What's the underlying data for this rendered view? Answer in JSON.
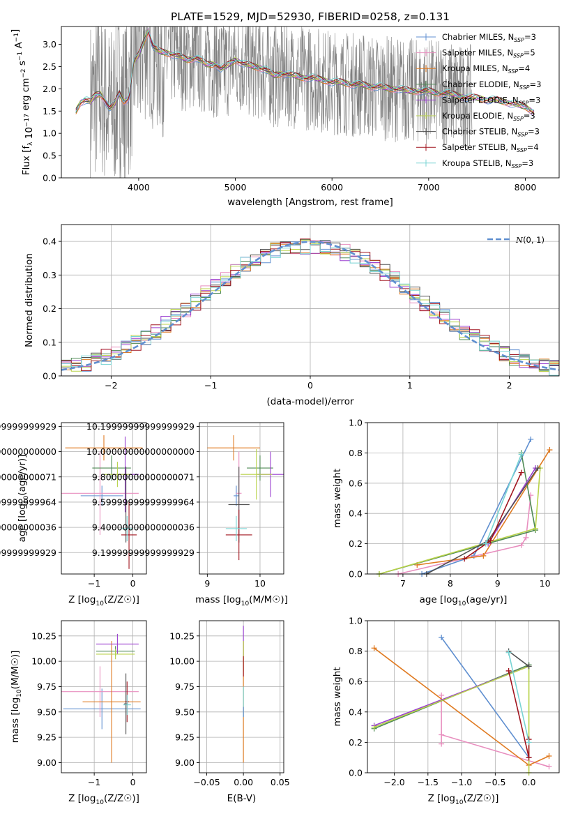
{
  "figure_title": "PLATE=1529, MJD=52930, FIBERID=0258, z=0.131",
  "colors": {
    "Chabrier MILES": "#5f8fd0",
    "Salpeter MILES": "#e88fbf",
    "Kroupa MILES": "#e07b22",
    "Chabrier ELODIE": "#4f8a55",
    "Salpeter ELODIE": "#9a3fd0",
    "Kroupa ELODIE": "#b8d24a",
    "Chabrier STELIB": "#505050",
    "Salpeter STELIB": "#a0141e",
    "Kroupa STELIB": "#78d4d4",
    "data": "#808080",
    "normal": "#5f8fd0"
  },
  "chart_data": [
    {
      "id": "spectrum",
      "type": "line",
      "xlabel": "wavelength [Angstrom, rest frame]",
      "ylabel": "Flux [f_λ 10^-17 erg cm^-2 s^-1 A^-1]",
      "xlim": [
        3200,
        8350
      ],
      "ylim": [
        0,
        3.4
      ],
      "xticks": [
        4000,
        5000,
        6000,
        7000,
        8000
      ],
      "yticks": [
        0.0,
        0.5,
        1.0,
        1.5,
        2.0,
        2.5,
        3.0
      ],
      "grid": false,
      "legend_position": "right",
      "legend": [
        {
          "model": "Chabrier MILES",
          "label": "Chabrier MILES, N",
          "n": "=3"
        },
        {
          "model": "Salpeter MILES",
          "label": "Salpeter MILES, N",
          "n": "=5"
        },
        {
          "model": "Kroupa MILES",
          "label": "Kroupa MILES, N",
          "n": "=4"
        },
        {
          "model": "Chabrier ELODIE",
          "label": "Chabrier ELODIE, N",
          "n": "=3"
        },
        {
          "model": "Salpeter ELODIE",
          "label": "Salpeter ELODIE, N",
          "n": "=3"
        },
        {
          "model": "Kroupa ELODIE",
          "label": "Kroupa ELODIE, N",
          "n": "=3"
        },
        {
          "model": "Chabrier STELIB",
          "label": "Chabrier STELIB, N",
          "n": "=3"
        },
        {
          "model": "Salpeter STELIB",
          "label": "Salpeter STELIB, N",
          "n": "=4"
        },
        {
          "model": "Kroupa STELIB",
          "label": "Kroupa STELIB, N",
          "n": "=3"
        }
      ],
      "legend_subscript": "SSP",
      "model_continuum": {
        "x": [
          3350,
          3400,
          3450,
          3500,
          3550,
          3600,
          3650,
          3700,
          3750,
          3800,
          3850,
          3900,
          3950,
          4000,
          4050,
          4100,
          4150,
          4200,
          4300,
          4400,
          4500,
          4600,
          4700,
          4800,
          4850,
          4900,
          5000,
          5100,
          5200,
          5300,
          5400,
          5500,
          5600,
          5700,
          5800,
          5900,
          6000,
          6100,
          6200,
          6300,
          6400,
          6500,
          6600,
          6700,
          6800,
          6900,
          7000,
          7100,
          7200,
          7300,
          7400,
          7500,
          7600,
          7700,
          7800,
          7900,
          8000,
          8100
        ],
        "y": [
          1.5,
          1.7,
          1.75,
          1.7,
          1.85,
          1.9,
          1.75,
          1.55,
          1.65,
          1.9,
          1.7,
          1.8,
          2.6,
          2.75,
          3.05,
          3.3,
          2.95,
          2.85,
          2.8,
          2.75,
          2.65,
          2.7,
          2.55,
          2.55,
          2.45,
          2.5,
          2.65,
          2.55,
          2.5,
          2.45,
          2.3,
          2.35,
          2.3,
          2.25,
          2.25,
          2.2,
          2.15,
          2.15,
          2.1,
          2.1,
          2.05,
          2.05,
          2.0,
          2.0,
          1.95,
          1.95,
          1.95,
          1.9,
          1.9,
          1.85,
          1.8,
          1.8,
          1.75,
          1.75,
          1.7,
          1.65,
          1.6,
          1.45
        ]
      },
      "data_range": [
        3500,
        7450
      ],
      "data_noise_amplitude": 1.2
    },
    {
      "id": "residuals",
      "type": "line",
      "xlabel": "(data-model)/error",
      "ylabel": "Normed distribution",
      "xlim": [
        -2.5,
        2.5
      ],
      "ylim": [
        0,
        0.45
      ],
      "xticks": [
        -2,
        -1,
        0,
        1,
        2
      ],
      "xticklabels": [
        "−2",
        "−1",
        "0",
        "1",
        "2"
      ],
      "yticks": [
        0.0,
        0.1,
        0.2,
        0.3,
        0.4
      ],
      "grid": true,
      "legend_position": "top-right",
      "legend": [
        {
          "label": "N(0, 1)",
          "style": "dashed"
        }
      ],
      "normal": {
        "mu": 0,
        "sigma": 1
      },
      "hist_bin_width": 0.1,
      "series_note": "nine step histograms, one per model"
    },
    {
      "id": "age-vs-Z",
      "type": "scatter",
      "xlabel": "Z [log10(Z/Z☉)]",
      "ylabel": "age  [log10(age/yr)]",
      "xlim": [
        -1.85,
        0.35
      ],
      "ylim": [
        9.03,
        10.23
      ],
      "xticks": [
        -1,
        0
      ],
      "xticklabels": [
        "−1",
        "0"
      ],
      "yticks": [
        9.2,
        9.4,
        9.6,
        9.8,
        10.0,
        10.2
      ],
      "grid": true,
      "points": [
        {
          "model": "Chabrier MILES",
          "x": -0.8,
          "xerr": 0.55,
          "y": 9.65,
          "yerr": 0.08
        },
        {
          "model": "Salpeter MILES",
          "x": -0.85,
          "xerr": 1.0,
          "y": 9.67,
          "yerr": 0.33
        },
        {
          "model": "Kroupa MILES",
          "x": -0.75,
          "xerr": 1.0,
          "y": 10.03,
          "yerr": 0.1
        },
        {
          "model": "Chabrier ELODIE",
          "x": -0.55,
          "xerr": 0.5,
          "y": 9.87,
          "yerr": 0.1
        },
        {
          "model": "Salpeter ELODIE",
          "x": -0.2,
          "xerr": 0.35,
          "y": 9.82,
          "yerr": 0.3
        },
        {
          "model": "Kroupa ELODIE",
          "x": -0.4,
          "xerr": 0.35,
          "y": 9.82,
          "yerr": 0.1
        },
        {
          "model": "Chabrier STELIB",
          "x": -0.18,
          "xerr": 0.03,
          "y": 9.58,
          "yerr": 0.3
        },
        {
          "model": "Salpeter STELIB",
          "x": -0.1,
          "xerr": 0.2,
          "y": 9.34,
          "yerr": 0.27
        },
        {
          "model": "Kroupa STELIB",
          "x": -0.15,
          "xerr": 0.15,
          "y": 9.39,
          "yerr": 0.1
        }
      ]
    },
    {
      "id": "age-vs-mass",
      "type": "scatter",
      "xlabel": "mass [log10(M/M☉)]",
      "ylabel": "",
      "xlim": [
        8.85,
        10.45
      ],
      "ylim": [
        9.03,
        10.23
      ],
      "xticks": [
        9,
        10
      ],
      "yticks": [
        9.2,
        9.4,
        9.6,
        9.8,
        10.0,
        10.2
      ],
      "grid": true,
      "points": [
        {
          "model": "Chabrier MILES",
          "x": 9.55,
          "xerr": 0.05,
          "y": 9.65,
          "yerr": 0.08
        },
        {
          "model": "Salpeter MILES",
          "x": 9.6,
          "xerr": 0.05,
          "y": 9.67,
          "yerr": 0.33
        },
        {
          "model": "Kroupa MILES",
          "x": 9.5,
          "xerr": 0.5,
          "y": 10.03,
          "yerr": 0.1
        },
        {
          "model": "Chabrier ELODIE",
          "x": 10.0,
          "xerr": 0.25,
          "y": 9.87,
          "yerr": 0.1
        },
        {
          "model": "Salpeter ELODIE",
          "x": 10.2,
          "xerr": 0.25,
          "y": 9.82,
          "yerr": 0.18
        },
        {
          "model": "Kroupa ELODIE",
          "x": 9.93,
          "xerr": 0.3,
          "y": 9.82,
          "yerr": 0.2
        },
        {
          "model": "Chabrier STELIB",
          "x": 9.6,
          "xerr": 0.2,
          "y": 9.58,
          "yerr": 0.3
        },
        {
          "model": "Salpeter STELIB",
          "x": 9.6,
          "xerr": 0.25,
          "y": 9.34,
          "yerr": 0.2
        },
        {
          "model": "Kroupa STELIB",
          "x": 9.55,
          "xerr": 0.2,
          "y": 9.39,
          "yerr": 0.1
        }
      ]
    },
    {
      "id": "weight-vs-age",
      "type": "line",
      "xlabel": "age  [log10(age/yr)]",
      "ylabel": "mass weight",
      "xlim": [
        6.25,
        10.3
      ],
      "ylim": [
        0,
        1.0
      ],
      "xticks": [
        7,
        8,
        9,
        10
      ],
      "yticks": [
        0.0,
        0.2,
        0.4,
        0.6,
        0.8,
        1.0
      ],
      "grid": true,
      "series": [
        {
          "model": "Chabrier MILES",
          "x": [
            7.4,
            8.5,
            9.7
          ],
          "y": [
            0.0,
            0.12,
            0.89
          ]
        },
        {
          "model": "Salpeter MILES",
          "x": [
            6.9,
            9.5,
            9.6,
            9.7
          ],
          "y": [
            0.0,
            0.19,
            0.24,
            0.52
          ]
        },
        {
          "model": "Kroupa MILES",
          "x": [
            7.3,
            8.7,
            10.1
          ],
          "y": [
            0.06,
            0.12,
            0.82
          ]
        },
        {
          "model": "Chabrier ELODIE",
          "x": [
            6.5,
            9.8,
            9.5
          ],
          "y": [
            0.0,
            0.29,
            0.8
          ]
        },
        {
          "model": "Salpeter ELODIE",
          "x": [
            8.8,
            9.8
          ],
          "y": [
            0.2,
            0.7
          ]
        },
        {
          "model": "Kroupa ELODIE",
          "x": [
            6.5,
            9.8,
            9.9
          ],
          "y": [
            0.0,
            0.3,
            0.7
          ]
        },
        {
          "model": "Chabrier STELIB",
          "x": [
            7.5,
            8.8,
            9.85
          ],
          "y": [
            0.0,
            0.22,
            0.7
          ]
        },
        {
          "model": "Salpeter STELIB",
          "x": [
            8.3,
            8.85,
            9.5
          ],
          "y": [
            0.1,
            0.22,
            0.67
          ]
        },
        {
          "model": "Kroupa STELIB",
          "x": [
            8.75,
            9.5
          ],
          "y": [
            0.2,
            0.79
          ]
        }
      ]
    },
    {
      "id": "mass-vs-Z",
      "type": "scatter",
      "xlabel": "Z [log10(Z/Z☉)]",
      "ylabel": "mass [log10(M/M☉)]",
      "xlim": [
        -1.85,
        0.35
      ],
      "ylim": [
        8.9,
        10.4
      ],
      "xticks": [
        -1,
        0
      ],
      "xticklabels": [
        "−1",
        "0"
      ],
      "yticks": [
        9.0,
        9.25,
        9.5,
        9.75,
        10.0,
        10.25
      ],
      "grid": true,
      "points": [
        {
          "model": "Chabrier MILES",
          "x": -0.8,
          "xerr": 1.0,
          "y": 9.53,
          "yerr": 0.2
        },
        {
          "model": "Salpeter MILES",
          "x": -0.85,
          "xerr": 1.0,
          "y": 9.7,
          "yerr": 0.25
        },
        {
          "model": "Kroupa MILES",
          "x": -0.55,
          "xerr": 0.75,
          "y": 9.6,
          "yerr": 0.6
        },
        {
          "model": "Chabrier ELODIE",
          "x": -0.45,
          "xerr": 0.5,
          "y": 10.1,
          "yerr": 0.05
        },
        {
          "model": "Salpeter ELODIE",
          "x": -0.4,
          "xerr": 0.55,
          "y": 10.17,
          "yerr": 0.1
        },
        {
          "model": "Kroupa ELODIE",
          "x": -0.45,
          "xerr": 0.5,
          "y": 10.07,
          "yerr": 0.05
        },
        {
          "model": "Chabrier STELIB",
          "x": -0.18,
          "xerr": 0.05,
          "y": 9.58,
          "yerr": 0.3
        },
        {
          "model": "Salpeter STELIB",
          "x": -0.15,
          "xerr": 0.05,
          "y": 9.6,
          "yerr": 0.2
        },
        {
          "model": "Kroupa STELIB",
          "x": -0.15,
          "xerr": 0.1,
          "y": 9.57,
          "yerr": 0.1
        }
      ]
    },
    {
      "id": "mass-vs-ebv",
      "type": "scatter",
      "xlabel": "E(B-V)",
      "ylabel": "",
      "xlim": [
        -0.06,
        0.055
      ],
      "ylim": [
        8.9,
        10.4
      ],
      "xticks": [
        -0.05,
        0.0,
        0.05
      ],
      "xticklabels": [
        "−0.05",
        "0.00",
        "0.05"
      ],
      "yticks": [
        9.0,
        9.25,
        9.5,
        9.75,
        10.0,
        10.25
      ],
      "grid": true,
      "points": [
        {
          "model": "Kroupa MILES",
          "x": 0,
          "y": 9.6,
          "yerr": 0.6
        },
        {
          "model": "Salpeter ELODIE",
          "x": 0,
          "y": 10.2,
          "yerr": 0.15
        },
        {
          "model": "Kroupa ELODIE",
          "x": 0,
          "y": 10.05,
          "yerr": 0.15
        },
        {
          "model": "Salpeter STELIB",
          "x": 0,
          "y": 9.95,
          "yerr": 0.1
        },
        {
          "model": "Kroupa STELIB",
          "x": 0,
          "y": 9.6,
          "yerr": 0.15
        },
        {
          "model": "Chabrier MILES",
          "x": 0,
          "y": 9.5,
          "yerr": 0.05
        }
      ]
    },
    {
      "id": "weight-vs-Z",
      "type": "line",
      "xlabel": "Z [log10(Z/Z☉)]",
      "ylabel": "mass weight",
      "xlim": [
        -2.4,
        0.45
      ],
      "ylim": [
        0,
        1.0
      ],
      "xticks": [
        -2.0,
        -1.5,
        -1.0,
        -0.5,
        0.0
      ],
      "xticklabels": [
        "−2.0",
        "−1.5",
        "−1.0",
        "−0.5",
        "0.0"
      ],
      "yticks": [
        0.0,
        0.2,
        0.4,
        0.6,
        0.8,
        1.0
      ],
      "grid": true,
      "series": [
        {
          "model": "Chabrier MILES",
          "x": [
            -1.3,
            0.0
          ],
          "y": [
            0.89,
            0.1
          ]
        },
        {
          "model": "Salpeter MILES",
          "x": [
            -1.3,
            -1.3,
            -1.3,
            0.3
          ],
          "y": [
            0.51,
            0.19,
            0.25,
            0.04
          ]
        },
        {
          "model": "Kroupa MILES",
          "x": [
            -2.3,
            0.0,
            0.3
          ],
          "y": [
            0.82,
            0.05,
            0.11
          ]
        },
        {
          "model": "Chabrier ELODIE",
          "x": [
            -2.3,
            0.0
          ],
          "y": [
            0.29,
            0.71
          ]
        },
        {
          "model": "Salpeter ELODIE",
          "x": [
            -2.3,
            0.0
          ],
          "y": [
            0.31,
            0.7
          ]
        },
        {
          "model": "Kroupa ELODIE",
          "x": [
            -2.3,
            0.0,
            0.0
          ],
          "y": [
            0.3,
            0.7,
            0.0
          ]
        },
        {
          "model": "Chabrier STELIB",
          "x": [
            -0.3,
            0.0
          ],
          "y": [
            0.8,
            0.7
          ]
        },
        {
          "model": "Salpeter STELIB",
          "x": [
            -0.3,
            0.0,
            0.0
          ],
          "y": [
            0.67,
            0.1,
            0.22
          ]
        },
        {
          "model": "Kroupa STELIB",
          "x": [
            -0.3,
            0.0
          ],
          "y": [
            0.79,
            0.2
          ]
        }
      ]
    }
  ]
}
